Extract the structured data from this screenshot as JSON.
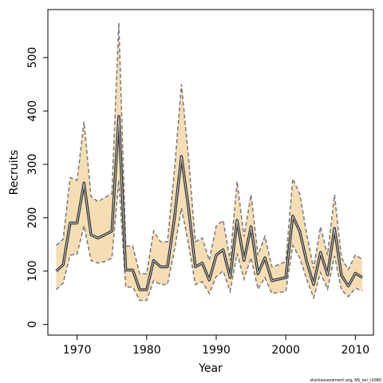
{
  "chart_data": {
    "type": "line",
    "title": "",
    "xlabel": "Year",
    "ylabel": "Recruits",
    "xlim": [
      1965.8,
      2012.6
    ],
    "ylim": [
      -20,
      590
    ],
    "xticks": [
      1970,
      1980,
      1990,
      2000,
      2010
    ],
    "yticks": [
      0,
      100,
      200,
      300,
      400,
      500
    ],
    "grid": false,
    "legend": "none",
    "credit": "stockassessment.org, NS_sel_r2080",
    "colors": {
      "band": "#f5deb3",
      "bound": "#7f7f7f",
      "estimate": "#333333",
      "axis": "#000000"
    },
    "x": [
      1967,
      1968,
      1969,
      1970,
      1971,
      1972,
      1973,
      1974,
      1975,
      1976,
      1977,
      1978,
      1979,
      1980,
      1981,
      1982,
      1983,
      1984,
      1985,
      1986,
      1987,
      1988,
      1989,
      1990,
      1991,
      1992,
      1993,
      1994,
      1995,
      1996,
      1997,
      1998,
      1999,
      2000,
      2001,
      2002,
      2003,
      2004,
      2005,
      2006,
      2007,
      2008,
      2009,
      2010,
      2011
    ],
    "series": [
      {
        "values": [
          100,
          112,
          190,
          190,
          265,
          168,
          162,
          168,
          175,
          390,
          102,
          102,
          65,
          65,
          120,
          108,
          108,
          200,
          315,
          220,
          108,
          115,
          83,
          130,
          140,
          88,
          195,
          120,
          183,
          95,
          125,
          82,
          85,
          88,
          203,
          175,
          118,
          75,
          135,
          93,
          180,
          92,
          72,
          96,
          88
        ]
      },
      {
        "values": [
          148,
          160,
          275,
          270,
          380,
          240,
          230,
          238,
          245,
          565,
          147,
          147,
          95,
          95,
          175,
          155,
          155,
          290,
          450,
          315,
          155,
          162,
          120,
          185,
          195,
          120,
          268,
          165,
          243,
          130,
          165,
          108,
          112,
          118,
          273,
          245,
          170,
          105,
          183,
          130,
          243,
          125,
          103,
          130,
          122
        ]
      },
      {
        "values": [
          65,
          78,
          130,
          132,
          185,
          120,
          115,
          118,
          124,
          270,
          70,
          70,
          45,
          45,
          82,
          75,
          75,
          140,
          218,
          152,
          75,
          80,
          58,
          90,
          100,
          62,
          133,
          85,
          125,
          66,
          88,
          58,
          60,
          62,
          148,
          125,
          85,
          50,
          97,
          66,
          128,
          65,
          52,
          68,
          63
        ]
      }
    ]
  }
}
